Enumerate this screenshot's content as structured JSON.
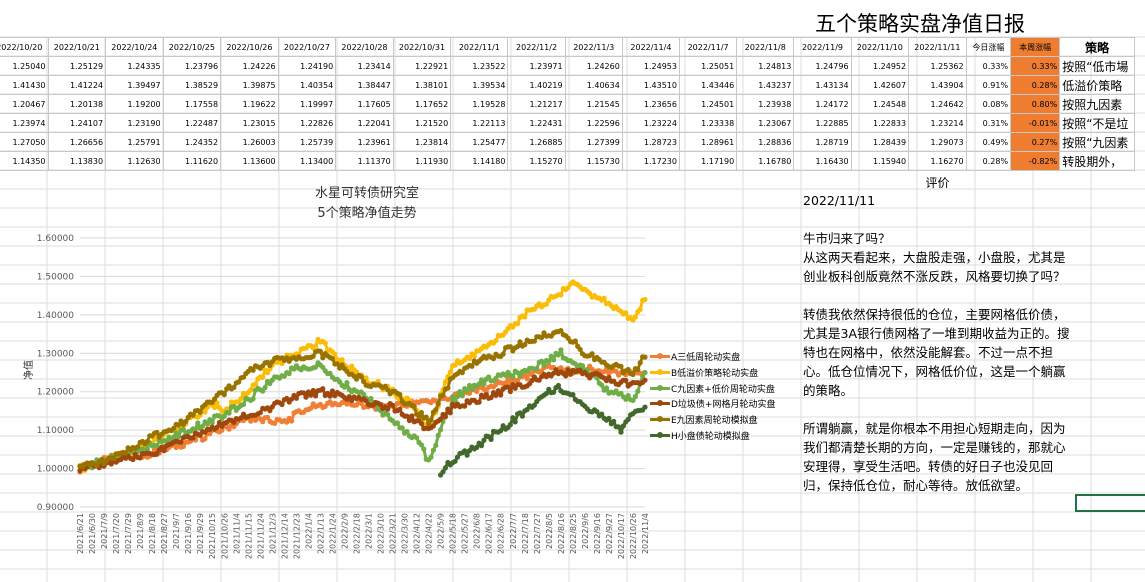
{
  "sheet_title": "五个策略实盘净值日报",
  "table": {
    "headers": [
      "2022/10/20",
      "2022/10/21",
      "2022/10/24",
      "2022/10/25",
      "2022/10/26",
      "2022/10/27",
      "2022/10/28",
      "2022/10/31",
      "2022/11/1",
      "2022/11/2",
      "2022/11/3",
      "2022/11/4",
      "2022/11/7",
      "2022/11/8",
      "2022/11/9",
      "2022/11/10",
      "2022/11/11"
    ],
    "daily_change_header": "今日涨幅",
    "weekly_change_header": "本周涨幅",
    "strategy_header": "策略",
    "rows": [
      {
        "values": [
          "1.25040",
          "1.25129",
          "1.24335",
          "1.23796",
          "1.24226",
          "1.24190",
          "1.23414",
          "1.22921",
          "1.23522",
          "1.23971",
          "1.24260",
          "1.24953",
          "1.25051",
          "1.24813",
          "1.24796",
          "1.24952",
          "1.25362"
        ],
        "daily": "0.33%",
        "weekly": "0.33%",
        "strategy": "按照“低市場"
      },
      {
        "values": [
          "1.41430",
          "1.41224",
          "1.39497",
          "1.38529",
          "1.39875",
          "1.40354",
          "1.38447",
          "1.38101",
          "1.39534",
          "1.40219",
          "1.40634",
          "1.43510",
          "1.43446",
          "1.43237",
          "1.43134",
          "1.42607",
          "1.43904"
        ],
        "daily": "0.91%",
        "weekly": "0.28%",
        "strategy": "低溢价策略"
      },
      {
        "values": [
          "1.20467",
          "1.20138",
          "1.19200",
          "1.17558",
          "1.19622",
          "1.19997",
          "1.17605",
          "1.17652",
          "1.19528",
          "1.21217",
          "1.21545",
          "1.23656",
          "1.24501",
          "1.23938",
          "1.24172",
          "1.24548",
          "1.24642"
        ],
        "daily": "0.08%",
        "weekly": "0.80%",
        "strategy": "按照九因素"
      },
      {
        "values": [
          "1.23974",
          "1.24107",
          "1.23190",
          "1.22487",
          "1.23015",
          "1.22826",
          "1.22041",
          "1.21520",
          "1.22113",
          "1.22431",
          "1.22596",
          "1.23224",
          "1.23338",
          "1.23067",
          "1.22885",
          "1.22833",
          "1.23214"
        ],
        "daily": "0.31%",
        "weekly": "-0.01%",
        "strategy": "按照“不是垃"
      },
      {
        "values": [
          "1.27050",
          "1.26656",
          "1.25791",
          "1.24352",
          "1.26003",
          "1.25739",
          "1.23961",
          "1.23814",
          "1.25477",
          "1.26885",
          "1.27399",
          "1.28723",
          "1.28961",
          "1.28836",
          "1.28719",
          "1.28439",
          "1.29073"
        ],
        "daily": "0.49%",
        "weekly": "0.27%",
        "strategy": "按照“九因素"
      },
      {
        "values": [
          "1.14350",
          "1.13830",
          "1.12630",
          "1.11620",
          "1.13600",
          "1.13400",
          "1.11370",
          "1.11930",
          "1.14180",
          "1.15270",
          "1.15730",
          "1.17230",
          "1.17190",
          "1.16780",
          "1.16430",
          "1.15940",
          "1.16270"
        ],
        "daily": "0.28%",
        "weekly": "-0.82%",
        "strategy": "转股期外，"
      }
    ]
  },
  "chart_data": {
    "type": "line",
    "title": "水星可转债研究室",
    "subtitle": "5个策略净值走势",
    "xlabel": "",
    "ylabel": "净值",
    "ylim": [
      0.9,
      1.6
    ],
    "y_ticks": [
      "0.90000",
      "1.00000",
      "1.10000",
      "1.20000",
      "1.30000",
      "1.40000",
      "1.50000",
      "1.60000"
    ],
    "x_ticks": [
      "2021/6/21",
      "2021/6/30",
      "2021/7/9",
      "2021/7/20",
      "2021/7/29",
      "2021/8/9",
      "2021/8/18",
      "2021/8/27",
      "2021/9/7",
      "2021/9/16",
      "2021/9/29",
      "2021/10/15",
      "2021/10/26",
      "2021/11/4",
      "2021/11/15",
      "2021/11/24",
      "2021/12/3",
      "2021/12/14",
      "2021/12/23",
      "2022/1/4",
      "2022/1/13",
      "2022/1/24",
      "2022/2/9",
      "2022/2/18",
      "2022/3/1",
      "2022/3/10",
      "2022/3/21",
      "2022/3/30",
      "2022/4/12",
      "2022/4/22",
      "2022/5/9",
      "2022/5/18",
      "2022/5/27",
      "2022/6/8",
      "2022/6/17",
      "2022/6/28",
      "2022/7/7",
      "2022/7/18",
      "2022/7/27",
      "2022/8/5",
      "2022/8/16",
      "2022/8/25",
      "2022/9/6",
      "2022/9/16",
      "2022/9/27",
      "2022/10/17",
      "2022/10/26",
      "2022/11/4"
    ],
    "grid": true,
    "legend_position": "right",
    "series": [
      {
        "name": "A三低周轮动实盘",
        "color": "#f07f35",
        "points": [
          [
            0,
            1.0
          ],
          [
            3,
            1.03
          ],
          [
            6,
            1.04
          ],
          [
            10,
            1.08
          ],
          [
            14,
            1.13
          ],
          [
            17,
            1.12
          ],
          [
            19,
            1.16
          ],
          [
            22,
            1.17
          ],
          [
            25,
            1.16
          ],
          [
            28,
            1.17
          ],
          [
            30,
            1.18
          ],
          [
            33,
            1.2
          ],
          [
            35,
            1.22
          ],
          [
            37,
            1.24
          ],
          [
            39,
            1.26
          ],
          [
            41,
            1.25
          ],
          [
            42,
            1.26
          ],
          [
            44,
            1.25
          ],
          [
            47,
            1.25
          ]
        ]
      },
      {
        "name": "B低溢价策略轮动实盘",
        "color": "#fbbc06",
        "points": [
          [
            0,
            1.0
          ],
          [
            2,
            1.02
          ],
          [
            5,
            1.05
          ],
          [
            8,
            1.1
          ],
          [
            11,
            1.17
          ],
          [
            12,
            1.15
          ],
          [
            14,
            1.2
          ],
          [
            16,
            1.27
          ],
          [
            18,
            1.3
          ],
          [
            20,
            1.33
          ],
          [
            22,
            1.27
          ],
          [
            24,
            1.23
          ],
          [
            26,
            1.2
          ],
          [
            28,
            1.16
          ],
          [
            29,
            1.1
          ],
          [
            31,
            1.27
          ],
          [
            33,
            1.3
          ],
          [
            35,
            1.35
          ],
          [
            37,
            1.4
          ],
          [
            39,
            1.44
          ],
          [
            41,
            1.48
          ],
          [
            42,
            1.46
          ],
          [
            44,
            1.43
          ],
          [
            46,
            1.39
          ],
          [
            47,
            1.44
          ]
        ]
      },
      {
        "name": "C九因素+低价周轮动实盘",
        "color": "#70ad47",
        "points": [
          [
            0,
            1.0
          ],
          [
            3,
            1.03
          ],
          [
            6,
            1.06
          ],
          [
            9,
            1.1
          ],
          [
            12,
            1.14
          ],
          [
            14,
            1.18
          ],
          [
            16,
            1.23
          ],
          [
            18,
            1.26
          ],
          [
            20,
            1.27
          ],
          [
            22,
            1.22
          ],
          [
            24,
            1.18
          ],
          [
            26,
            1.12
          ],
          [
            28,
            1.08
          ],
          [
            29,
            1.02
          ],
          [
            31,
            1.18
          ],
          [
            33,
            1.22
          ],
          [
            35,
            1.24
          ],
          [
            37,
            1.25
          ],
          [
            39,
            1.28
          ],
          [
            40,
            1.3
          ],
          [
            42,
            1.26
          ],
          [
            44,
            1.2
          ],
          [
            46,
            1.18
          ],
          [
            47,
            1.25
          ]
        ]
      },
      {
        "name": "D垃圾债+网格月轮动实盘",
        "color": "#9e480e",
        "points": [
          [
            0,
            1.0
          ],
          [
            3,
            1.02
          ],
          [
            6,
            1.04
          ],
          [
            8,
            1.07
          ],
          [
            10,
            1.09
          ],
          [
            12,
            1.12
          ],
          [
            14,
            1.14
          ],
          [
            16,
            1.16
          ],
          [
            18,
            1.19
          ],
          [
            20,
            1.2
          ],
          [
            22,
            1.19
          ],
          [
            24,
            1.17
          ],
          [
            26,
            1.16
          ],
          [
            28,
            1.12
          ],
          [
            29,
            1.1
          ],
          [
            31,
            1.16
          ],
          [
            33,
            1.18
          ],
          [
            35,
            1.2
          ],
          [
            37,
            1.22
          ],
          [
            39,
            1.25
          ],
          [
            41,
            1.25
          ],
          [
            43,
            1.24
          ],
          [
            45,
            1.22
          ],
          [
            47,
            1.23
          ]
        ]
      },
      {
        "name": "E九因素周轮动模拟盘",
        "color": "#997300",
        "points": [
          [
            0,
            1.0
          ],
          [
            3,
            1.03
          ],
          [
            6,
            1.08
          ],
          [
            9,
            1.13
          ],
          [
            12,
            1.2
          ],
          [
            14,
            1.25
          ],
          [
            16,
            1.28
          ],
          [
            18,
            1.29
          ],
          [
            20,
            1.3
          ],
          [
            22,
            1.26
          ],
          [
            24,
            1.22
          ],
          [
            26,
            1.2
          ],
          [
            28,
            1.15
          ],
          [
            29,
            1.12
          ],
          [
            31,
            1.24
          ],
          [
            33,
            1.28
          ],
          [
            35,
            1.3
          ],
          [
            37,
            1.33
          ],
          [
            39,
            1.35
          ],
          [
            40,
            1.36
          ],
          [
            42,
            1.3
          ],
          [
            44,
            1.27
          ],
          [
            46,
            1.25
          ],
          [
            47,
            1.29
          ]
        ]
      },
      {
        "name": "H小盘债轮动模拟盘",
        "color": "#43682b",
        "points": [
          [
            30,
            0.99
          ],
          [
            31,
            1.02
          ],
          [
            33,
            1.06
          ],
          [
            35,
            1.1
          ],
          [
            37,
            1.15
          ],
          [
            39,
            1.2
          ],
          [
            40,
            1.21
          ],
          [
            42,
            1.16
          ],
          [
            44,
            1.13
          ],
          [
            45,
            1.1
          ],
          [
            46,
            1.14
          ],
          [
            47,
            1.16
          ]
        ]
      }
    ]
  },
  "review": {
    "header": "评价",
    "date": "2022/11/11",
    "paragraphs": [
      "牛市归来了吗？\n从这两天看起来，大盘股走强，小盘股，尤其是创业板科创版竟然不涨反跌，风格要切换了吗？",
      "转债我依然保持很低的仓位，主要网格低价债，尤其是3A银行债网格了一堆到期收益为正的。搜特也在网格中，依然没能解套。不过一点不担心。低仓位情况下，网格低价位，这是一个躺赢的策略。",
      "",
      "所谓躺赢，就是你根本不用担心短期走向，因为我们都清楚长期的方向，一定是赚钱的，那就心安理得，享受生活吧。转债的好日子也没见回归，保持低仓位，耐心等待。放低欲望。"
    ]
  }
}
